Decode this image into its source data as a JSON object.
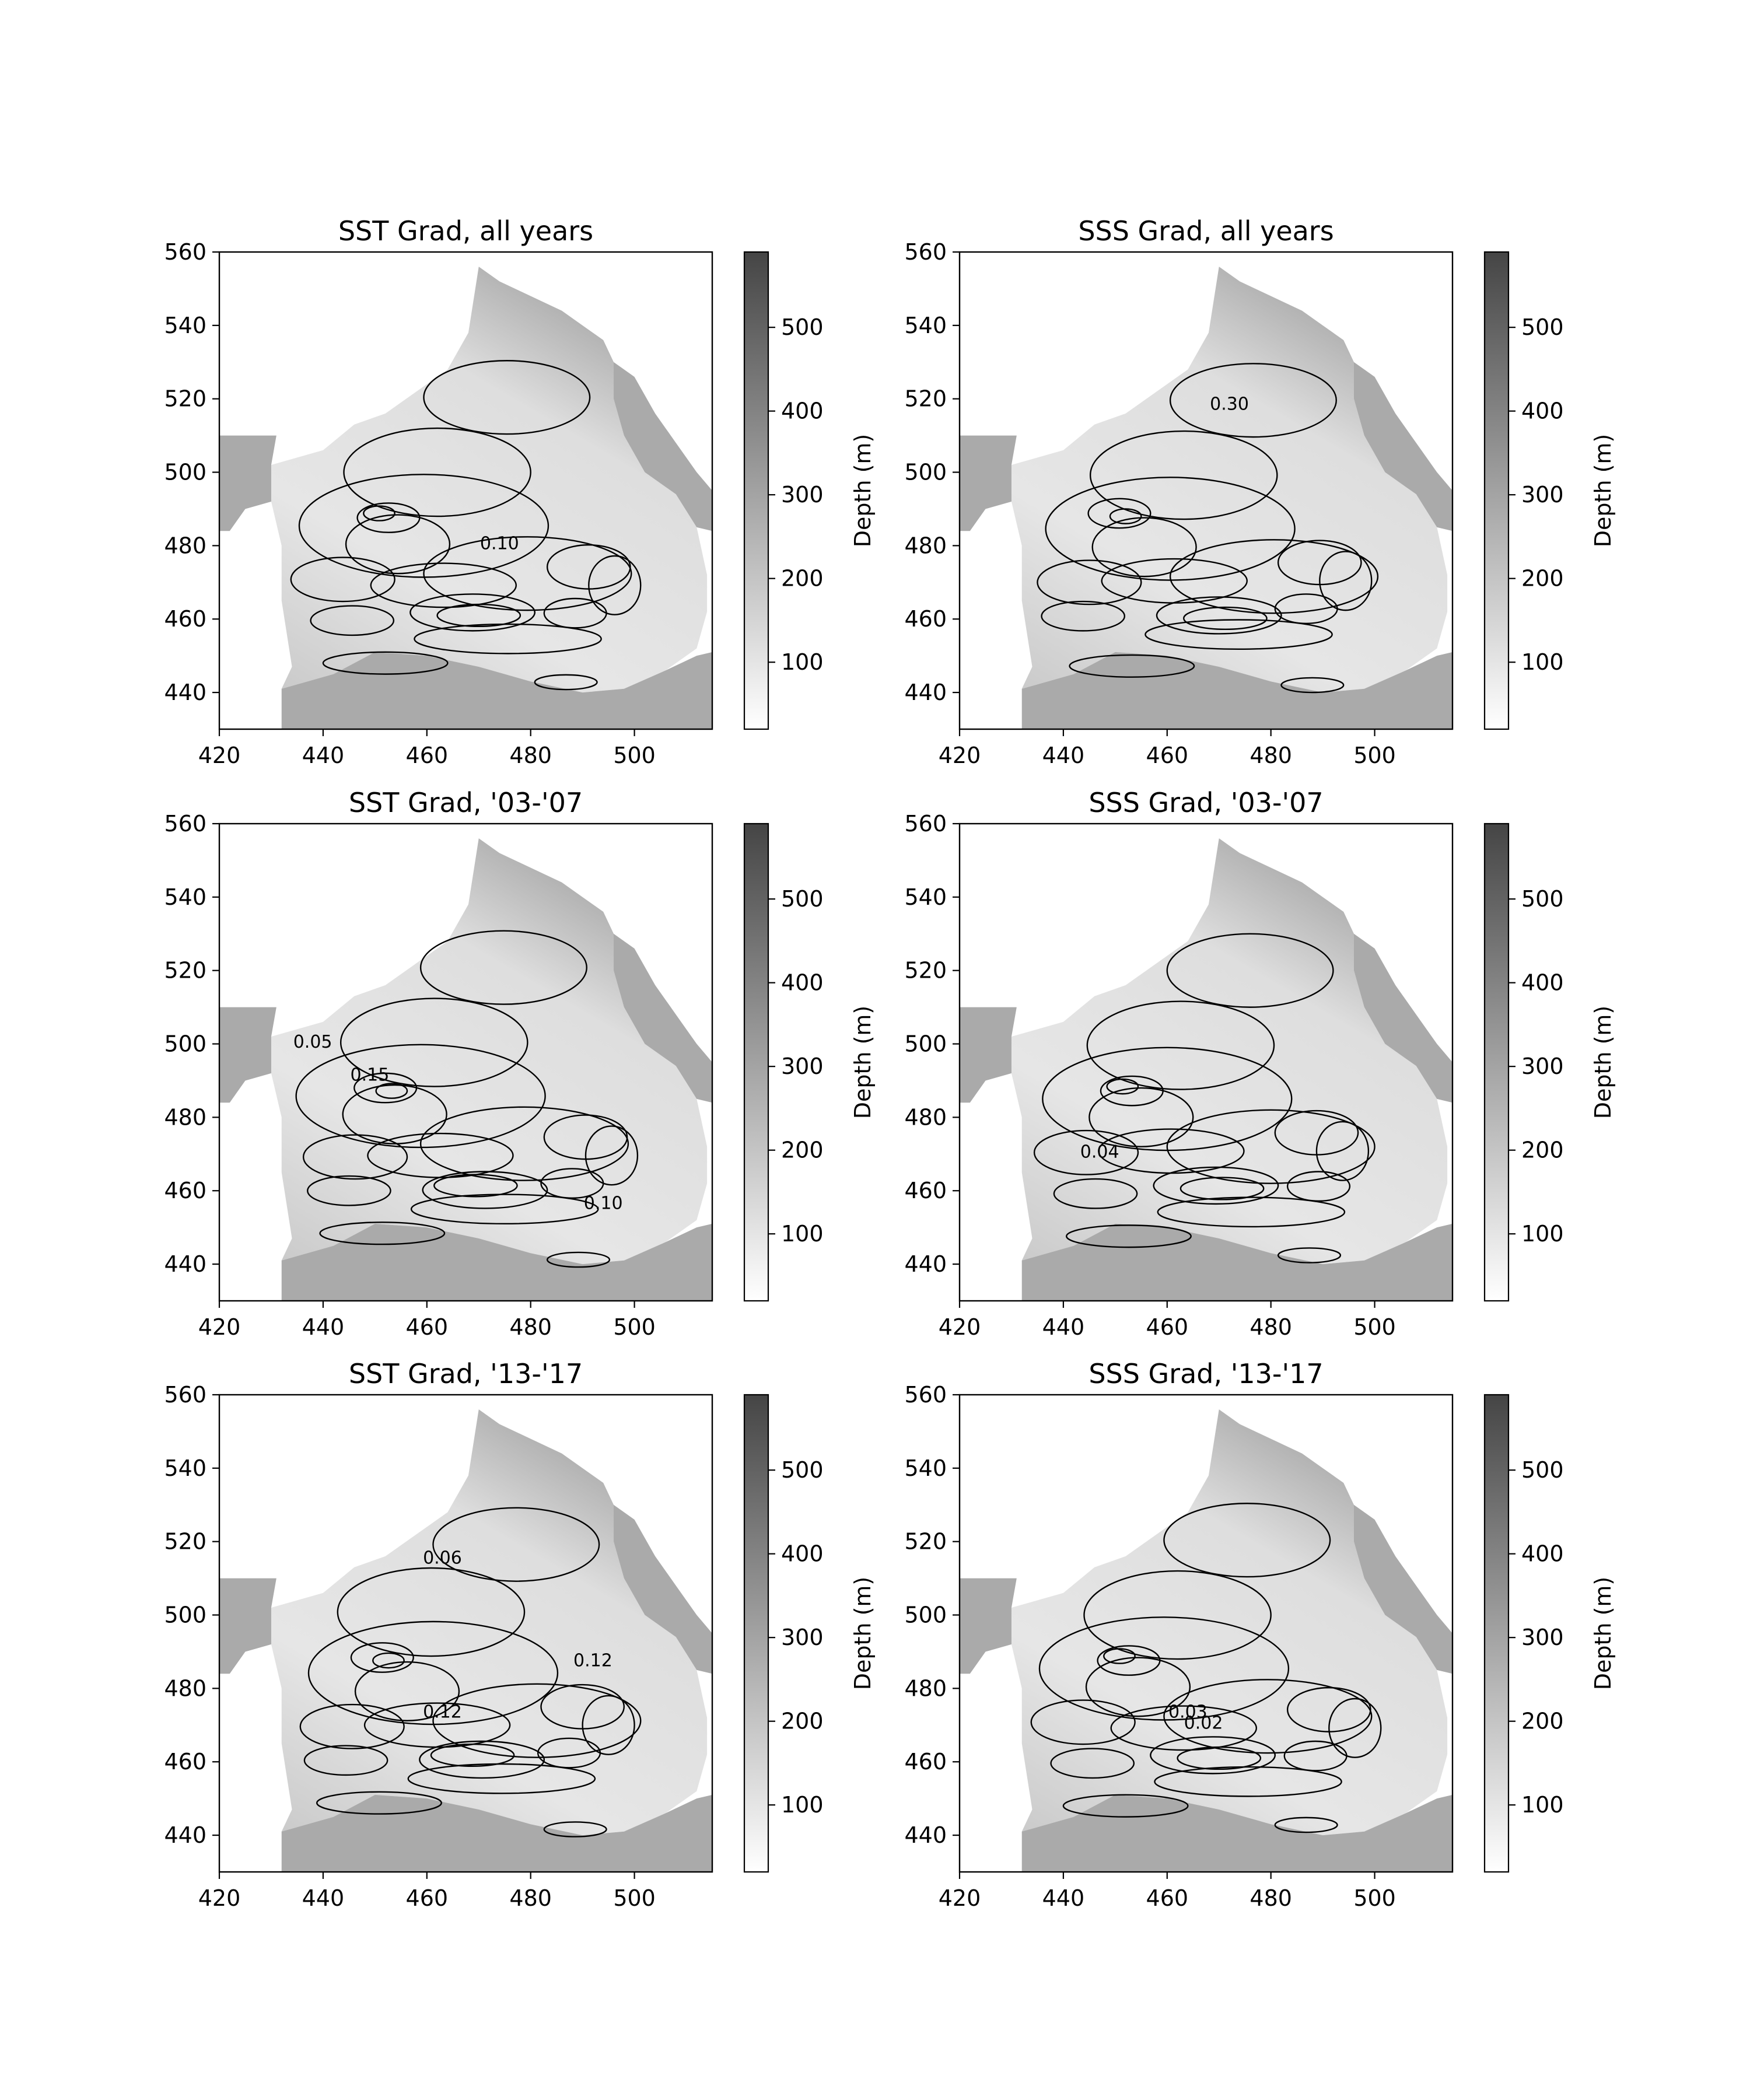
{
  "colorbar": {
    "label": "Depth (m)",
    "ticks": [
      100,
      200,
      300,
      400,
      500
    ],
    "range": [
      20,
      590
    ]
  },
  "chart_data": [
    {
      "type": "heatmap",
      "title": "SST Grad, all years",
      "xlim": [
        420,
        515
      ],
      "ylim": [
        430,
        560
      ],
      "xticks": [
        420,
        440,
        460,
        480,
        500
      ],
      "yticks": [
        440,
        460,
        480,
        500,
        520,
        540,
        560
      ],
      "contour_labels": [
        {
          "text": "0.10",
          "x": 474,
          "y": 479
        }
      ]
    },
    {
      "type": "heatmap",
      "title": "SSS Grad, all years",
      "xlim": [
        420,
        515
      ],
      "ylim": [
        430,
        560
      ],
      "xticks": [
        420,
        440,
        460,
        480,
        500
      ],
      "yticks": [
        440,
        460,
        480,
        500,
        520,
        540,
        560
      ],
      "contour_labels": [
        {
          "text": "0.30",
          "x": 472,
          "y": 517
        }
      ]
    },
    {
      "type": "heatmap",
      "title": "SST Grad, '03-'07",
      "xlim": [
        420,
        515
      ],
      "ylim": [
        430,
        560
      ],
      "xticks": [
        420,
        440,
        460,
        480,
        500
      ],
      "yticks": [
        440,
        460,
        480,
        500,
        520,
        540,
        560
      ],
      "contour_labels": [
        {
          "text": "0.05",
          "x": 438,
          "y": 499
        },
        {
          "text": "0.15",
          "x": 449,
          "y": 490
        },
        {
          "text": "0.10",
          "x": 494,
          "y": 455
        }
      ]
    },
    {
      "type": "heatmap",
      "title": "SSS Grad, '03-'07",
      "xlim": [
        420,
        515
      ],
      "ylim": [
        430,
        560
      ],
      "xticks": [
        420,
        440,
        460,
        480,
        500
      ],
      "yticks": [
        440,
        460,
        480,
        500,
        520,
        540,
        560
      ],
      "contour_labels": [
        {
          "text": "0.04",
          "x": 447,
          "y": 469
        }
      ]
    },
    {
      "type": "heatmap",
      "title": "SST Grad, '13-'17",
      "xlim": [
        420,
        515
      ],
      "ylim": [
        430,
        560
      ],
      "xticks": [
        420,
        440,
        460,
        480,
        500
      ],
      "yticks": [
        440,
        460,
        480,
        500,
        520,
        540,
        560
      ],
      "contour_labels": [
        {
          "text": "0.06",
          "x": 463,
          "y": 514
        },
        {
          "text": "0.12",
          "x": 492,
          "y": 486
        },
        {
          "text": "0.12",
          "x": 463,
          "y": 472
        }
      ]
    },
    {
      "type": "heatmap",
      "title": "SSS Grad, '13-'17",
      "xlim": [
        420,
        515
      ],
      "ylim": [
        430,
        560
      ],
      "xticks": [
        420,
        440,
        460,
        480,
        500
      ],
      "yticks": [
        440,
        460,
        480,
        500,
        520,
        540,
        560
      ],
      "contour_labels": [
        {
          "text": "0.03",
          "x": 464,
          "y": 472
        },
        {
          "text": "0.02",
          "x": 467,
          "y": 469
        }
      ]
    }
  ]
}
